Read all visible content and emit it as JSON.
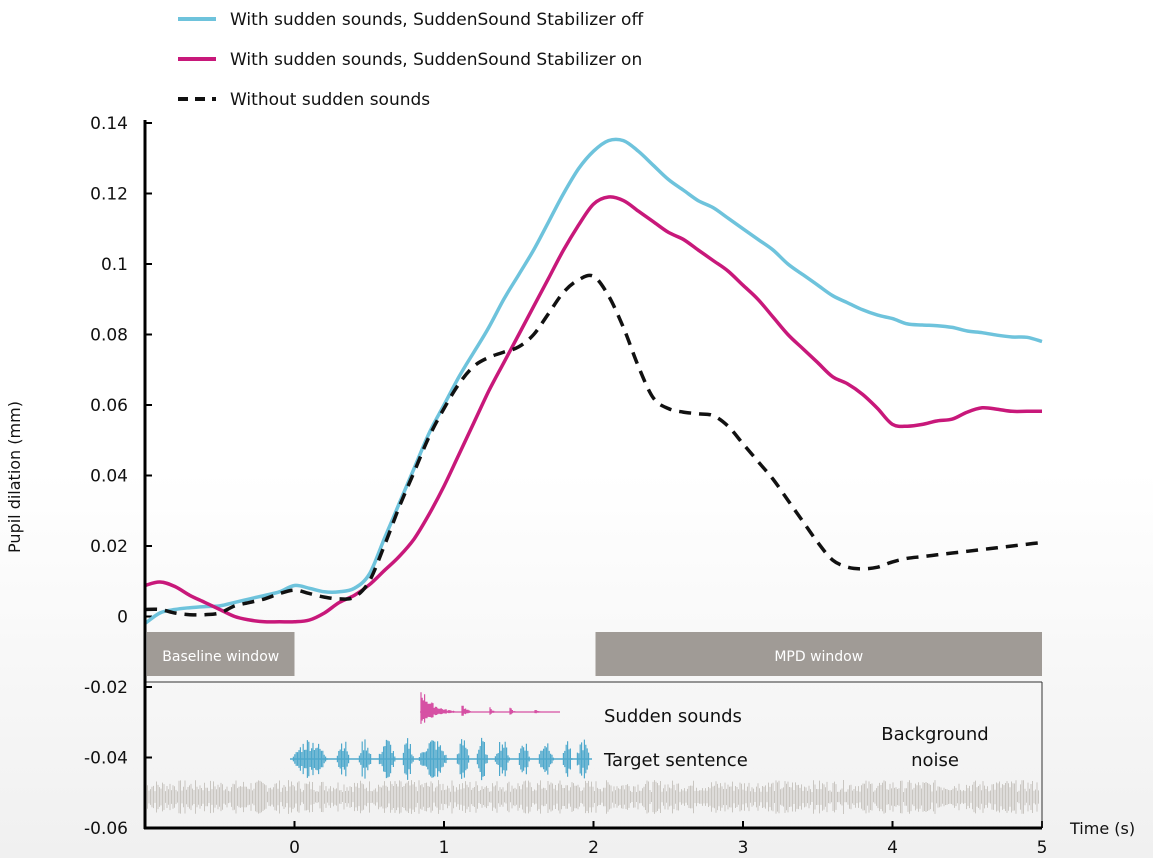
{
  "chart_data": {
    "type": "line",
    "xlabel": "Time (s)",
    "ylabel": "Pupil dilation (mm)",
    "xlim": [
      -1,
      5
    ],
    "ylim": [
      -0.06,
      0.14
    ],
    "x_ticks": [
      0,
      1,
      2,
      3,
      4,
      5
    ],
    "y_ticks": [
      0.14,
      0.12,
      0.1,
      0.08,
      0.06,
      0.04,
      0.02,
      0,
      -0.02,
      -0.04,
      -0.06
    ],
    "y_tick_labels": [
      "0.14",
      "0.12",
      "0.1",
      "0.08",
      "0.06",
      "0.04",
      "0.02",
      "0",
      "-0.02",
      "-0.04",
      "-0.06"
    ],
    "legend_position": "top-left",
    "grid": false,
    "series": [
      {
        "name": "With sudden sounds, SuddenSound Stabilizer off",
        "color": "#6ec3dc",
        "style": "solid",
        "x": [
          -1,
          -0.9,
          -0.8,
          -0.7,
          -0.6,
          -0.5,
          -0.4,
          -0.3,
          -0.2,
          -0.1,
          0,
          0.1,
          0.2,
          0.3,
          0.4,
          0.5,
          0.6,
          0.7,
          0.8,
          0.9,
          1.0,
          1.1,
          1.2,
          1.3,
          1.4,
          1.5,
          1.6,
          1.7,
          1.8,
          1.9,
          2.0,
          2.1,
          2.2,
          2.3,
          2.4,
          2.5,
          2.6,
          2.7,
          2.8,
          2.9,
          3.0,
          3.1,
          3.2,
          3.3,
          3.4,
          3.5,
          3.6,
          3.7,
          3.8,
          3.9,
          4.0,
          4.1,
          4.2,
          4.3,
          4.4,
          4.5,
          4.6,
          4.7,
          4.8,
          4.9,
          5.0
        ],
        "y": [
          -0.002,
          0.001,
          0.002,
          0.0025,
          0.0028,
          0.003,
          0.004,
          0.005,
          0.006,
          0.007,
          0.0088,
          0.008,
          0.007,
          0.007,
          0.008,
          0.012,
          0.022,
          0.032,
          0.042,
          0.052,
          0.06,
          0.068,
          0.075,
          0.082,
          0.09,
          0.097,
          0.104,
          0.112,
          0.12,
          0.127,
          0.132,
          0.135,
          0.135,
          0.132,
          0.128,
          0.124,
          0.121,
          0.118,
          0.116,
          0.113,
          0.11,
          0.107,
          0.104,
          0.1,
          0.097,
          0.094,
          0.091,
          0.089,
          0.087,
          0.0855,
          0.0845,
          0.083,
          0.0827,
          0.0825,
          0.082,
          0.081,
          0.0805,
          0.0798,
          0.0793,
          0.0792,
          0.078
        ]
      },
      {
        "name": "With sudden sounds, SuddenSound Stabilizer on",
        "color": "#c8187a",
        "style": "solid",
        "x": [
          -1,
          -0.9,
          -0.8,
          -0.7,
          -0.6,
          -0.5,
          -0.4,
          -0.3,
          -0.2,
          -0.1,
          0,
          0.1,
          0.2,
          0.3,
          0.4,
          0.5,
          0.6,
          0.7,
          0.8,
          0.9,
          1.0,
          1.1,
          1.2,
          1.3,
          1.4,
          1.5,
          1.6,
          1.7,
          1.8,
          1.9,
          2.0,
          2.1,
          2.2,
          2.3,
          2.4,
          2.5,
          2.6,
          2.7,
          2.8,
          2.9,
          3.0,
          3.1,
          3.2,
          3.3,
          3.4,
          3.5,
          3.6,
          3.7,
          3.8,
          3.9,
          4.0,
          4.1,
          4.2,
          4.3,
          4.4,
          4.5,
          4.6,
          4.7,
          4.8,
          4.9,
          5.0
        ],
        "y": [
          0.0088,
          0.0098,
          0.0085,
          0.006,
          0.004,
          0.002,
          0.0,
          -0.001,
          -0.0015,
          -0.0015,
          -0.0015,
          -0.001,
          0.001,
          0.004,
          0.006,
          0.009,
          0.013,
          0.017,
          0.022,
          0.029,
          0.037,
          0.046,
          0.055,
          0.064,
          0.072,
          0.08,
          0.088,
          0.096,
          0.104,
          0.111,
          0.117,
          0.119,
          0.118,
          0.115,
          0.112,
          0.109,
          0.107,
          0.104,
          0.101,
          0.098,
          0.094,
          0.09,
          0.085,
          0.08,
          0.076,
          0.072,
          0.068,
          0.066,
          0.063,
          0.059,
          0.0545,
          0.054,
          0.0545,
          0.0555,
          0.056,
          0.058,
          0.0592,
          0.0588,
          0.0582,
          0.0582,
          0.0582
        ]
      },
      {
        "name": "Without sudden sounds",
        "color": "#111111",
        "style": "dashed",
        "x": [
          -1,
          -0.9,
          -0.8,
          -0.7,
          -0.6,
          -0.5,
          -0.4,
          -0.3,
          -0.2,
          -0.1,
          0,
          0.1,
          0.2,
          0.3,
          0.4,
          0.5,
          0.6,
          0.7,
          0.8,
          0.9,
          1.0,
          1.1,
          1.2,
          1.3,
          1.4,
          1.5,
          1.6,
          1.7,
          1.8,
          1.9,
          2.0,
          2.1,
          2.2,
          2.3,
          2.4,
          2.5,
          2.6,
          2.7,
          2.8,
          2.9,
          3.0,
          3.1,
          3.2,
          3.3,
          3.4,
          3.5,
          3.6,
          3.7,
          3.8,
          3.9,
          4.0,
          4.1,
          4.2,
          4.3,
          4.4,
          4.5,
          4.6,
          4.7,
          4.8,
          4.9,
          5.0
        ],
        "y": [
          0.002,
          0.002,
          0.001,
          0.0005,
          0.0005,
          0.001,
          0.003,
          0.004,
          0.005,
          0.0065,
          0.0075,
          0.0065,
          0.0055,
          0.005,
          0.0055,
          0.01,
          0.02,
          0.031,
          0.041,
          0.051,
          0.059,
          0.066,
          0.071,
          0.0735,
          0.075,
          0.0765,
          0.08,
          0.086,
          0.092,
          0.0955,
          0.0965,
          0.091,
          0.082,
          0.071,
          0.062,
          0.059,
          0.058,
          0.0575,
          0.057,
          0.054,
          0.049,
          0.044,
          0.039,
          0.033,
          0.027,
          0.021,
          0.016,
          0.014,
          0.0135,
          0.014,
          0.0155,
          0.0165,
          0.017,
          0.0175,
          0.018,
          0.0185,
          0.019,
          0.0195,
          0.02,
          0.0205,
          0.021
        ]
      }
    ],
    "windows": [
      {
        "label": "Baseline window",
        "x_start": -1,
        "x_end": 0
      },
      {
        "label": "MPD window",
        "x_start": 2,
        "x_end": 5
      }
    ],
    "audio_labels": {
      "sudden": "Sudden sounds",
      "target": "Target sentence",
      "background_line1": "Background",
      "background_line2": "noise"
    }
  },
  "colors": {
    "window_fill": "#a09b96",
    "target_wave": "#4ea8cc",
    "sudden_wave": "#d651a4",
    "noise_wave": "#c9c6c1"
  }
}
